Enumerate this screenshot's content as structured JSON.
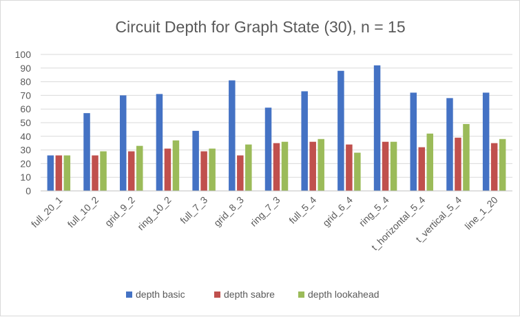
{
  "chart_data": {
    "type": "bar",
    "title": "Circuit Depth for Graph State (30), n = 15",
    "xlabel": "",
    "ylabel": "",
    "ylim": [
      0,
      100
    ],
    "yticks": [
      "0",
      "10",
      "20",
      "30",
      "40",
      "50",
      "60",
      "70",
      "80",
      "90",
      "100"
    ],
    "grid": true,
    "legend_position": "bottom",
    "categories": [
      "full_20_1",
      "full_10_2",
      "grid_9_2",
      "ring_10_2",
      "full_7_3",
      "grid_8_3",
      "ring_7_3",
      "full_5_4",
      "grid_6_4",
      "ring_5_4",
      "t_horizontal_5_4",
      "t_vertical_5_4",
      "line_1_20"
    ],
    "series": [
      {
        "name": "depth basic",
        "color": "#4472c4",
        "values": [
          26,
          57,
          70,
          71,
          44,
          81,
          61,
          73,
          88,
          92,
          72,
          68,
          72
        ]
      },
      {
        "name": "depth sabre",
        "color": "#c0504d",
        "values": [
          26,
          26,
          29,
          31,
          29,
          26,
          35,
          36,
          34,
          36,
          32,
          39,
          35
        ]
      },
      {
        "name": "depth lookahead",
        "color": "#9bbb59",
        "values": [
          26,
          29,
          33,
          37,
          31,
          34,
          36,
          38,
          28,
          36,
          42,
          49,
          38
        ]
      }
    ]
  }
}
